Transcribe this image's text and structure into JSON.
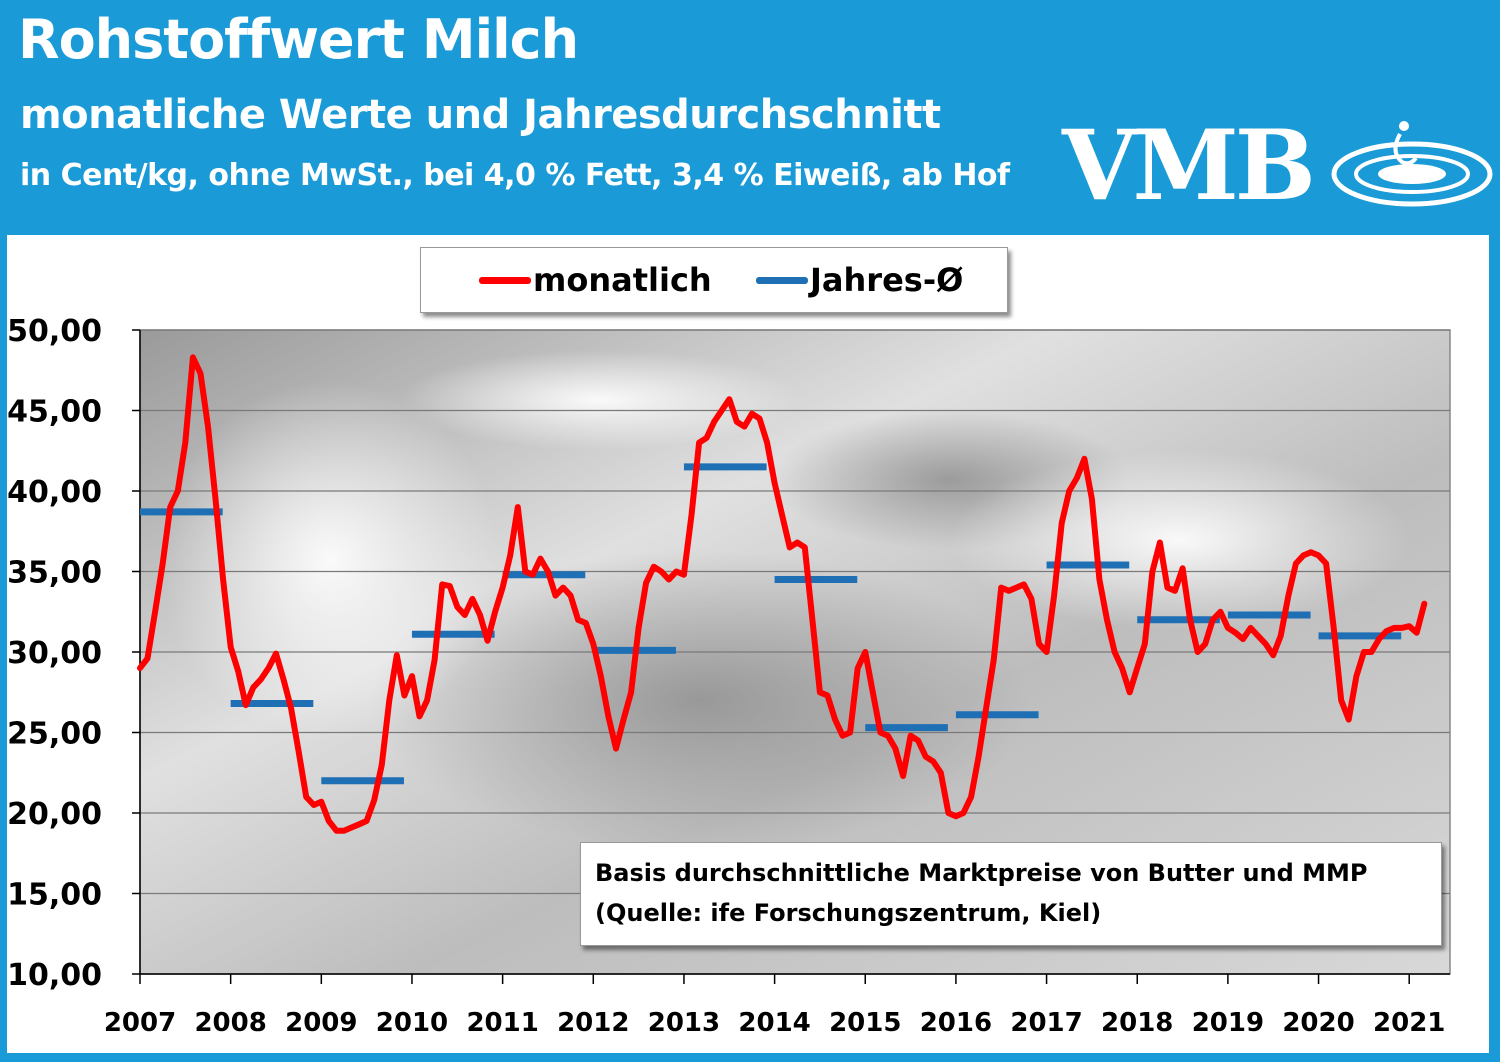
{
  "header": {
    "title": "Rohstoffwert Milch",
    "subtitle": "monatliche Werte und Jahresdurchschnitt",
    "subtitle2": "in Cent/kg, ohne MwSt., bei 4,0 % Fett, 3,4 % Eiweiß, ab Hof",
    "logo_text": "VMB"
  },
  "colors": {
    "header_bg": "#1a9ad6",
    "monthly_line": "#ff0000",
    "annual_avg": "#1f6fb5"
  },
  "legend": {
    "monthly": "monatlich",
    "annual": "Jahres-Ø"
  },
  "note": {
    "line1": "Basis durchschnittliche  Marktpreise  von Butter und MMP",
    "line2": "(Quelle: ife Forschungszentrum,  Kiel)"
  },
  "chart_data": {
    "type": "line",
    "title": "Rohstoffwert Milch",
    "ylim": [
      10,
      50
    ],
    "xlim": [
      2007,
      2021.45
    ],
    "y_ticks": [
      "10,00",
      "15,00",
      "20,00",
      "25,00",
      "30,00",
      "35,00",
      "40,00",
      "45,00",
      "50,00"
    ],
    "x_ticks": [
      "2007",
      "2008",
      "2009",
      "2010",
      "2011",
      "2012",
      "2013",
      "2014",
      "2015",
      "2016",
      "2017",
      "2018",
      "2019",
      "2020",
      "2021"
    ],
    "grid": true,
    "legend_position": "top",
    "series": [
      {
        "name": "monatlich",
        "x": [
          2007.0,
          2007.083,
          2007.167,
          2007.25,
          2007.333,
          2007.417,
          2007.5,
          2007.583,
          2007.667,
          2007.75,
          2007.833,
          2007.917,
          2008.0,
          2008.083,
          2008.167,
          2008.25,
          2008.333,
          2008.417,
          2008.5,
          2008.583,
          2008.667,
          2008.75,
          2008.833,
          2008.917,
          2009.0,
          2009.083,
          2009.167,
          2009.25,
          2009.333,
          2009.417,
          2009.5,
          2009.583,
          2009.667,
          2009.75,
          2009.833,
          2009.917,
          2010.0,
          2010.083,
          2010.167,
          2010.25,
          2010.333,
          2010.417,
          2010.5,
          2010.583,
          2010.667,
          2010.75,
          2010.833,
          2010.917,
          2011.0,
          2011.083,
          2011.167,
          2011.25,
          2011.333,
          2011.417,
          2011.5,
          2011.583,
          2011.667,
          2011.75,
          2011.833,
          2011.917,
          2012.0,
          2012.083,
          2012.167,
          2012.25,
          2012.333,
          2012.417,
          2012.5,
          2012.583,
          2012.667,
          2012.75,
          2012.833,
          2012.917,
          2013.0,
          2013.083,
          2013.167,
          2013.25,
          2013.333,
          2013.417,
          2013.5,
          2013.583,
          2013.667,
          2013.75,
          2013.833,
          2013.917,
          2014.0,
          2014.083,
          2014.167,
          2014.25,
          2014.333,
          2014.417,
          2014.5,
          2014.583,
          2014.667,
          2014.75,
          2014.833,
          2014.917,
          2015.0,
          2015.083,
          2015.167,
          2015.25,
          2015.333,
          2015.417,
          2015.5,
          2015.583,
          2015.667,
          2015.75,
          2015.833,
          2015.917,
          2016.0,
          2016.083,
          2016.167,
          2016.25,
          2016.333,
          2016.417,
          2016.5,
          2016.583,
          2016.667,
          2016.75,
          2016.833,
          2016.917,
          2017.0,
          2017.083,
          2017.167,
          2017.25,
          2017.333,
          2017.417,
          2017.5,
          2017.583,
          2017.667,
          2017.75,
          2017.833,
          2017.917,
          2018.0,
          2018.083,
          2018.167,
          2018.25,
          2018.333,
          2018.417,
          2018.5,
          2018.583,
          2018.667,
          2018.75,
          2018.833,
          2018.917,
          2019.0,
          2019.083,
          2019.167,
          2019.25,
          2019.333,
          2019.417,
          2019.5,
          2019.583,
          2019.667,
          2019.75,
          2019.833,
          2019.917,
          2020.0,
          2020.083,
          2020.167,
          2020.25,
          2020.333,
          2020.417,
          2020.5,
          2020.583,
          2020.667,
          2020.75,
          2020.833,
          2020.917,
          2021.0,
          2021.083,
          2021.167
        ],
        "values": [
          29.0,
          29.6,
          32.5,
          35.5,
          39.0,
          40.0,
          43.0,
          48.3,
          47.3,
          44.0,
          39.5,
          34.5,
          30.3,
          28.8,
          26.7,
          27.8,
          28.3,
          29.0,
          29.9,
          28.3,
          26.5,
          23.8,
          21.0,
          20.5,
          20.7,
          19.5,
          18.9,
          18.9,
          19.1,
          19.3,
          19.5,
          20.8,
          23.0,
          27.0,
          29.8,
          27.3,
          28.5,
          26.0,
          27.0,
          29.5,
          34.2,
          34.1,
          32.8,
          32.3,
          33.3,
          32.3,
          30.7,
          32.5,
          34.0,
          36.0,
          39.0,
          35.0,
          34.8,
          35.8,
          35.0,
          33.5,
          34.0,
          33.5,
          32.0,
          31.8,
          30.5,
          28.5,
          26.0,
          24.0,
          25.8,
          27.5,
          31.5,
          34.3,
          35.3,
          35.0,
          34.5,
          35.0,
          34.8,
          38.5,
          43.0,
          43.3,
          44.3,
          45.0,
          45.7,
          44.3,
          44.0,
          44.8,
          44.5,
          43.0,
          40.5,
          38.5,
          36.5,
          36.8,
          36.5,
          32.0,
          27.5,
          27.3,
          25.8,
          24.8,
          25.0,
          29.0,
          30.0,
          27.5,
          25.0,
          24.8,
          24.0,
          22.3,
          24.8,
          24.5,
          23.5,
          23.2,
          22.5,
          20.0,
          19.8,
          20.0,
          21.0,
          23.5,
          26.5,
          29.5,
          34.0,
          33.8,
          34.0,
          34.2,
          33.3,
          30.5,
          30.0,
          33.5,
          38.0,
          40.0,
          40.8,
          42.0,
          39.5,
          34.5,
          32.0,
          30.0,
          29.0,
          27.5,
          29.0,
          30.5,
          35.0,
          36.8,
          34.0,
          33.8,
          35.2,
          32.0,
          30.0,
          30.5,
          32.0,
          32.5,
          31.5,
          31.2,
          30.8,
          31.5,
          31.0,
          30.5,
          29.8,
          31.0,
          33.5,
          35.5,
          36.0,
          36.2,
          36.0,
          35.5,
          31.5,
          27.0,
          25.8,
          28.5,
          30.0,
          30.0,
          30.8,
          31.3,
          31.5,
          31.5,
          31.6,
          31.2,
          33.0
        ]
      },
      {
        "name": "Jahres-Ø",
        "years": [
          2007,
          2008,
          2009,
          2010,
          2011,
          2012,
          2013,
          2014,
          2015,
          2016,
          2017,
          2018,
          2019,
          2020
        ],
        "values": [
          38.7,
          26.8,
          22.0,
          31.1,
          34.8,
          30.1,
          41.5,
          34.5,
          25.3,
          26.1,
          35.4,
          32.0,
          32.3,
          31.0
        ]
      }
    ]
  }
}
